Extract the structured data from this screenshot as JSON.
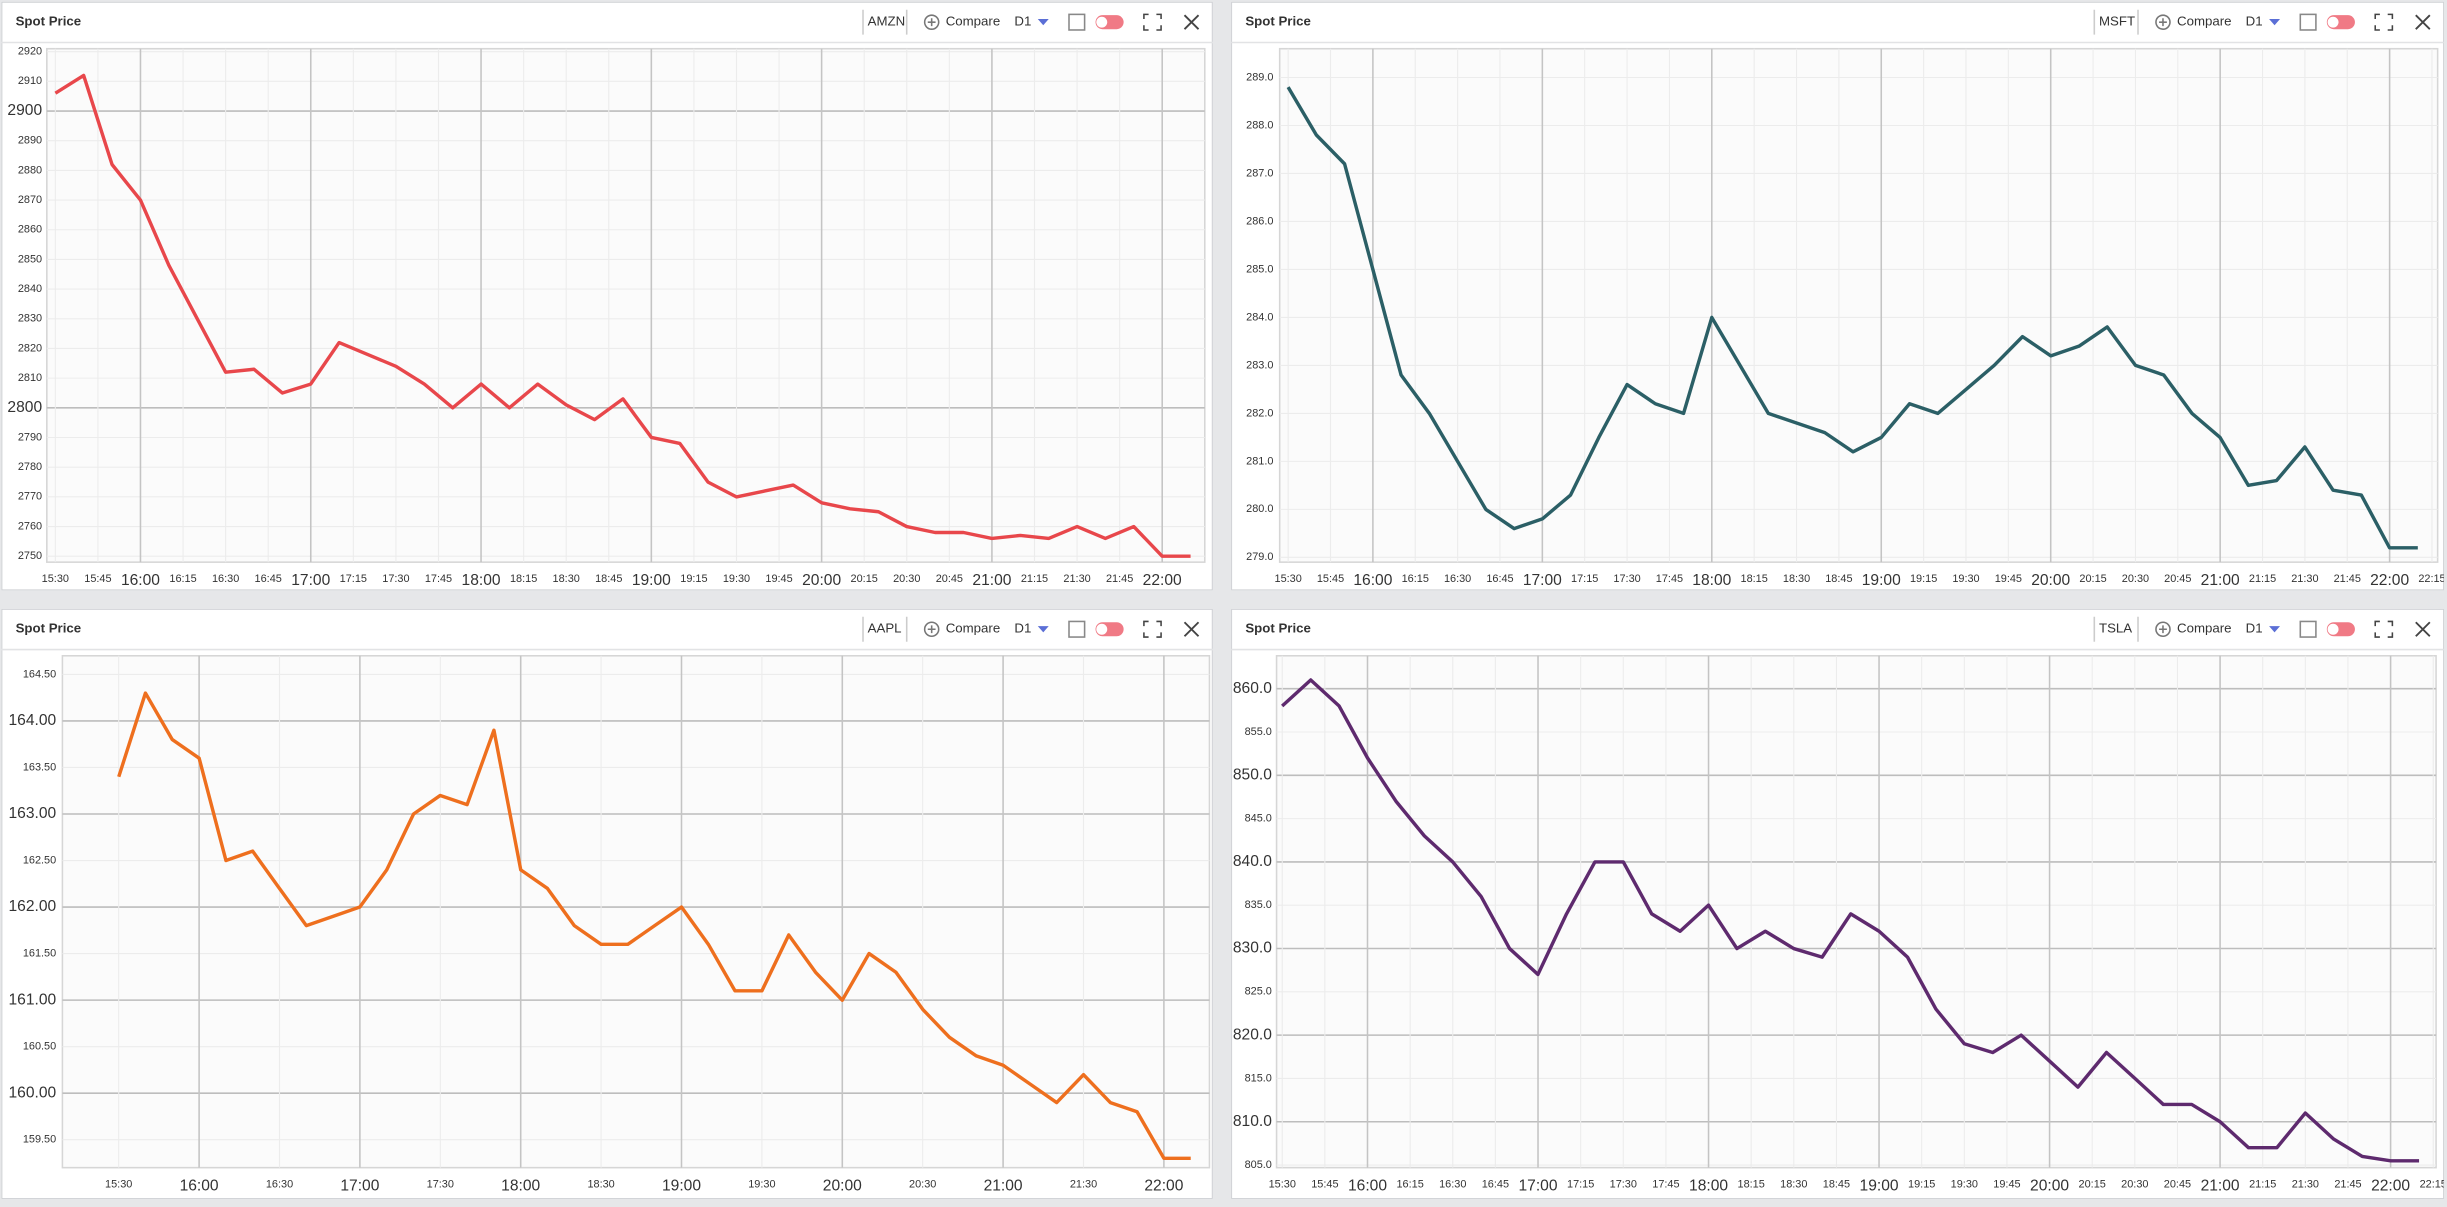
{
  "chart_data": [
    {
      "type": "line",
      "title": "Spot Price",
      "compare": "Compare",
      "timeframe": "D1",
      "x": [
        "15:30",
        "15:40",
        "15:50",
        "16:00",
        "16:10",
        "16:20",
        "16:30",
        "16:40",
        "16:50",
        "17:00",
        "17:10",
        "17:20",
        "17:30",
        "17:40",
        "17:50",
        "18:00",
        "18:10",
        "18:20",
        "18:30",
        "18:40",
        "18:50",
        "19:00",
        "19:10",
        "19:20",
        "19:30",
        "19:40",
        "19:50",
        "20:00",
        "20:10",
        "20:20",
        "20:30",
        "20:40",
        "20:50",
        "21:00",
        "21:10",
        "21:20",
        "21:30",
        "21:40",
        "21:50",
        "22:00",
        "22:10"
      ],
      "series": [
        {
          "name": "AMZN",
          "color": "#e8474b",
          "values": [
            2906,
            2912,
            2882,
            2870,
            2848,
            2830,
            2812,
            2813,
            2805,
            2808,
            2822,
            2818,
            2814,
            2808,
            2800,
            2808,
            2800,
            2808,
            2801,
            2796,
            2803,
            2790,
            2788,
            2775,
            2770,
            2772,
            2774,
            2768,
            2766,
            2765,
            2760,
            2758,
            2758,
            2756,
            2757,
            2756,
            2760,
            2756,
            2760,
            2750,
            2750
          ]
        }
      ],
      "xlim": [
        "15:27",
        "22:15"
      ],
      "xticks": [
        "15:30",
        "15:45",
        "16:00",
        "16:15",
        "16:30",
        "16:45",
        "17:00",
        "17:15",
        "17:30",
        "17:45",
        "18:00",
        "18:15",
        "18:30",
        "18:45",
        "19:00",
        "19:15",
        "19:30",
        "19:45",
        "20:00",
        "20:15",
        "20:30",
        "20:45",
        "21:00",
        "21:15",
        "21:30",
        "21:45",
        "22:00"
      ],
      "ylim": [
        2748,
        2921
      ],
      "yticks": [
        2750,
        2760,
        2770,
        2780,
        2790,
        2800,
        2810,
        2820,
        2830,
        2840,
        2850,
        2860,
        2870,
        2880,
        2890,
        2900,
        2910,
        2920
      ],
      "grid": true
    },
    {
      "type": "line",
      "title": "Spot Price",
      "compare": "Compare",
      "timeframe": "D1",
      "x": [
        "15:30",
        "15:40",
        "15:50",
        "16:00",
        "16:10",
        "16:20",
        "16:30",
        "16:40",
        "16:50",
        "17:00",
        "17:10",
        "17:20",
        "17:30",
        "17:40",
        "17:50",
        "18:00",
        "18:10",
        "18:20",
        "18:30",
        "18:40",
        "18:50",
        "19:00",
        "19:10",
        "19:20",
        "19:30",
        "19:40",
        "19:50",
        "20:00",
        "20:10",
        "20:20",
        "20:30",
        "20:40",
        "20:50",
        "21:00",
        "21:10",
        "21:20",
        "21:30",
        "21:40",
        "21:50",
        "22:00",
        "22:10"
      ],
      "series": [
        {
          "name": "MSFT",
          "color": "#2b5f66",
          "values": [
            288.8,
            287.8,
            287.2,
            285.0,
            282.8,
            282.0,
            281.0,
            280.0,
            279.6,
            279.8,
            280.3,
            281.5,
            282.6,
            282.2,
            282.0,
            284.0,
            283.0,
            282.0,
            281.8,
            281.6,
            281.2,
            281.5,
            282.2,
            282.0,
            282.5,
            283.0,
            283.6,
            283.2,
            283.4,
            283.8,
            283.0,
            282.8,
            282.0,
            281.5,
            280.5,
            280.6,
            281.3,
            280.4,
            280.3,
            279.2,
            279.2
          ]
        }
      ],
      "xlim": [
        "15:27",
        "22:17"
      ],
      "xticks": [
        "15:30",
        "15:45",
        "16:00",
        "16:15",
        "16:30",
        "16:45",
        "17:00",
        "17:15",
        "17:30",
        "17:45",
        "18:00",
        "18:15",
        "18:30",
        "18:45",
        "19:00",
        "19:15",
        "19:30",
        "19:45",
        "20:00",
        "20:15",
        "20:30",
        "20:45",
        "21:00",
        "21:15",
        "21:30",
        "21:45",
        "22:00",
        "22:15"
      ],
      "ylim": [
        278.9,
        289.6
      ],
      "yticks": [
        {
          "value": 279,
          "label": "279.0"
        },
        {
          "value": 280,
          "label": "280.0"
        },
        {
          "value": 281,
          "label": "281.0"
        },
        {
          "value": 282,
          "label": "282.0"
        },
        {
          "value": 283,
          "label": "283.0"
        },
        {
          "value": 284,
          "label": "284.0"
        },
        {
          "value": 285,
          "label": "285.0"
        },
        {
          "value": 286,
          "label": "286.0"
        },
        {
          "value": 287,
          "label": "287.0"
        },
        {
          "value": 288,
          "label": "288.0"
        },
        {
          "value": 289,
          "label": "289.0"
        }
      ],
      "grid": true
    },
    {
      "type": "line",
      "title": "Spot Price",
      "compare": "Compare",
      "timeframe": "D1",
      "x": [
        "15:30",
        "15:40",
        "15:50",
        "16:00",
        "16:10",
        "16:20",
        "16:30",
        "16:40",
        "16:50",
        "17:00",
        "17:10",
        "17:20",
        "17:30",
        "17:40",
        "17:50",
        "18:00",
        "18:10",
        "18:20",
        "18:30",
        "18:40",
        "18:50",
        "19:00",
        "19:10",
        "19:20",
        "19:30",
        "19:40",
        "19:50",
        "20:00",
        "20:10",
        "20:20",
        "20:30",
        "20:40",
        "20:50",
        "21:00",
        "21:10",
        "21:20",
        "21:30",
        "21:40",
        "21:50",
        "22:00",
        "22:10"
      ],
      "series": [
        {
          "name": "AAPL",
          "color": "#ee6f1e",
          "values": [
            163.4,
            164.3,
            163.8,
            163.6,
            162.5,
            162.6,
            162.2,
            161.8,
            161.9,
            162.0,
            162.4,
            163.0,
            163.2,
            163.1,
            163.9,
            162.4,
            162.2,
            161.8,
            161.6,
            161.6,
            161.8,
            162.0,
            161.6,
            161.1,
            161.1,
            161.7,
            161.3,
            161.0,
            161.5,
            161.3,
            160.9,
            160.6,
            160.4,
            160.3,
            160.1,
            159.9,
            160.2,
            159.9,
            159.8,
            159.3,
            159.3
          ]
        }
      ],
      "xlim": [
        "15:09",
        "22:17"
      ],
      "xticks": [
        "15:30",
        "16:00",
        "16:30",
        "17:00",
        "17:30",
        "18:00",
        "18:30",
        "19:00",
        "19:30",
        "20:00",
        "20:30",
        "21:00",
        "21:30",
        "22:00"
      ],
      "ylim": [
        159.2,
        164.7
      ],
      "yticks": [
        {
          "value": 159.5,
          "label": "159.50"
        },
        {
          "value": 160,
          "label": "160.00"
        },
        {
          "value": 160.5,
          "label": "160.50"
        },
        {
          "value": 161,
          "label": "161.00"
        },
        {
          "value": 161.5,
          "label": "161.50"
        },
        {
          "value": 162,
          "label": "162.00"
        },
        {
          "value": 162.5,
          "label": "162.50"
        },
        {
          "value": 163,
          "label": "163.00"
        },
        {
          "value": 163.5,
          "label": "163.50"
        },
        {
          "value": 164,
          "label": "164.00"
        },
        {
          "value": 164.5,
          "label": "164.50"
        }
      ],
      "grid": true
    },
    {
      "type": "line",
      "title": "Spot Price",
      "compare": "Compare",
      "timeframe": "D1",
      "x": [
        "15:30",
        "15:40",
        "15:50",
        "16:00",
        "16:10",
        "16:20",
        "16:30",
        "16:40",
        "16:50",
        "17:00",
        "17:10",
        "17:20",
        "17:30",
        "17:40",
        "17:50",
        "18:00",
        "18:10",
        "18:20",
        "18:30",
        "18:40",
        "18:50",
        "19:00",
        "19:10",
        "19:20",
        "19:30",
        "19:40",
        "19:50",
        "20:00",
        "20:10",
        "20:20",
        "20:30",
        "20:40",
        "20:50",
        "21:00",
        "21:10",
        "21:20",
        "21:30",
        "21:40",
        "21:50",
        "22:00",
        "22:10"
      ],
      "series": [
        {
          "name": "TSLA",
          "color": "#5e2a6e",
          "values": [
            858,
            861,
            858,
            852,
            847,
            843,
            840,
            836,
            830,
            827,
            834,
            840,
            840,
            834,
            832,
            835,
            830,
            832,
            830,
            829,
            834,
            832,
            829,
            823,
            819,
            818,
            820,
            817,
            814,
            818,
            815,
            812,
            812,
            810,
            807,
            807,
            811,
            808,
            806,
            805.5,
            805.5
          ]
        }
      ],
      "xlim": [
        "15:28",
        "22:16"
      ],
      "xticks": [
        "15:30",
        "15:45",
        "16:00",
        "16:15",
        "16:30",
        "16:45",
        "17:00",
        "17:15",
        "17:30",
        "17:45",
        "18:00",
        "18:15",
        "18:30",
        "18:45",
        "19:00",
        "19:15",
        "19:30",
        "19:45",
        "20:00",
        "20:15",
        "20:30",
        "20:45",
        "21:00",
        "21:15",
        "21:30",
        "21:45",
        "22:00",
        "22:15"
      ],
      "ylim": [
        804.7,
        863.8
      ],
      "yticks": [
        {
          "value": 805,
          "label": "805.0"
        },
        {
          "value": 810,
          "label": "810.0"
        },
        {
          "value": 815,
          "label": "815.0"
        },
        {
          "value": 820,
          "label": "820.0"
        },
        {
          "value": 825,
          "label": "825.0"
        },
        {
          "value": 830,
          "label": "830.0"
        },
        {
          "value": 835,
          "label": "835.0"
        },
        {
          "value": 840,
          "label": "840.0"
        },
        {
          "value": 845,
          "label": "845.0"
        },
        {
          "value": 850,
          "label": "850.0"
        },
        {
          "value": 855,
          "label": "855.0"
        },
        {
          "value": 860,
          "label": "860.0"
        }
      ],
      "grid": true
    }
  ]
}
